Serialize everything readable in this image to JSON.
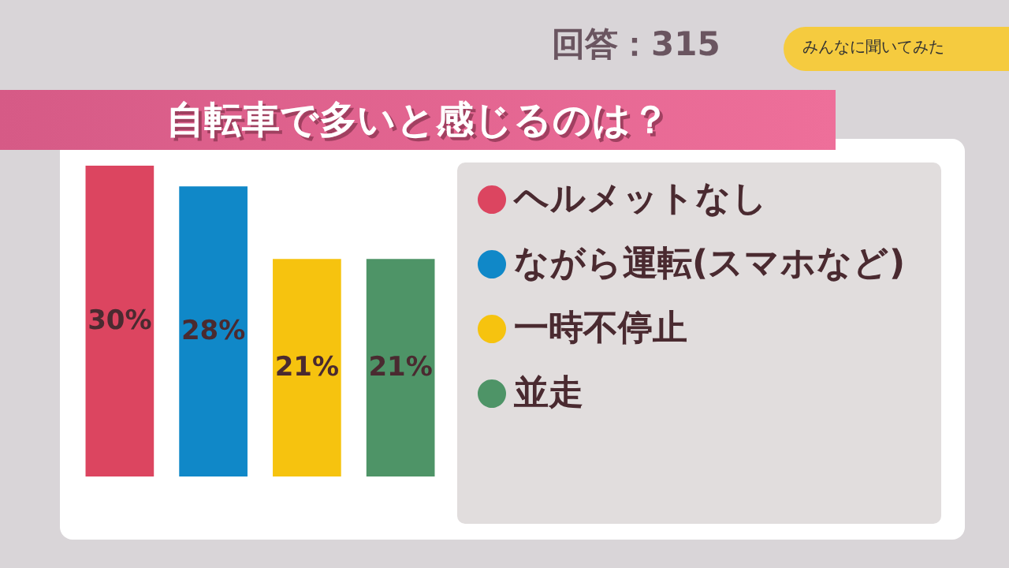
{
  "chart_data": {
    "type": "bar",
    "title": "自転車で多いと感じるのは？",
    "annotations": [
      "回答：315",
      "みんなに聞いてみた"
    ],
    "categories": [
      null
    ],
    "series": [
      {
        "name": "ヘルメットなし",
        "color": "#dc4560",
        "values": [
          30
        ],
        "value_labels": [
          "30%"
        ]
      },
      {
        "name": "ながら運転(スマホなど)",
        "color": "#1088c8",
        "values": [
          28
        ],
        "value_labels": [
          "28%"
        ]
      },
      {
        "name": "一時不停止",
        "color": "#f6c30f",
        "values": [
          21
        ],
        "value_labels": [
          "21%"
        ]
      },
      {
        "name": "並走",
        "color": "#4e9467",
        "values": [
          21
        ],
        "value_labels": [
          "21%"
        ]
      }
    ],
    "legend": "right",
    "tick_labels": false
  }
}
